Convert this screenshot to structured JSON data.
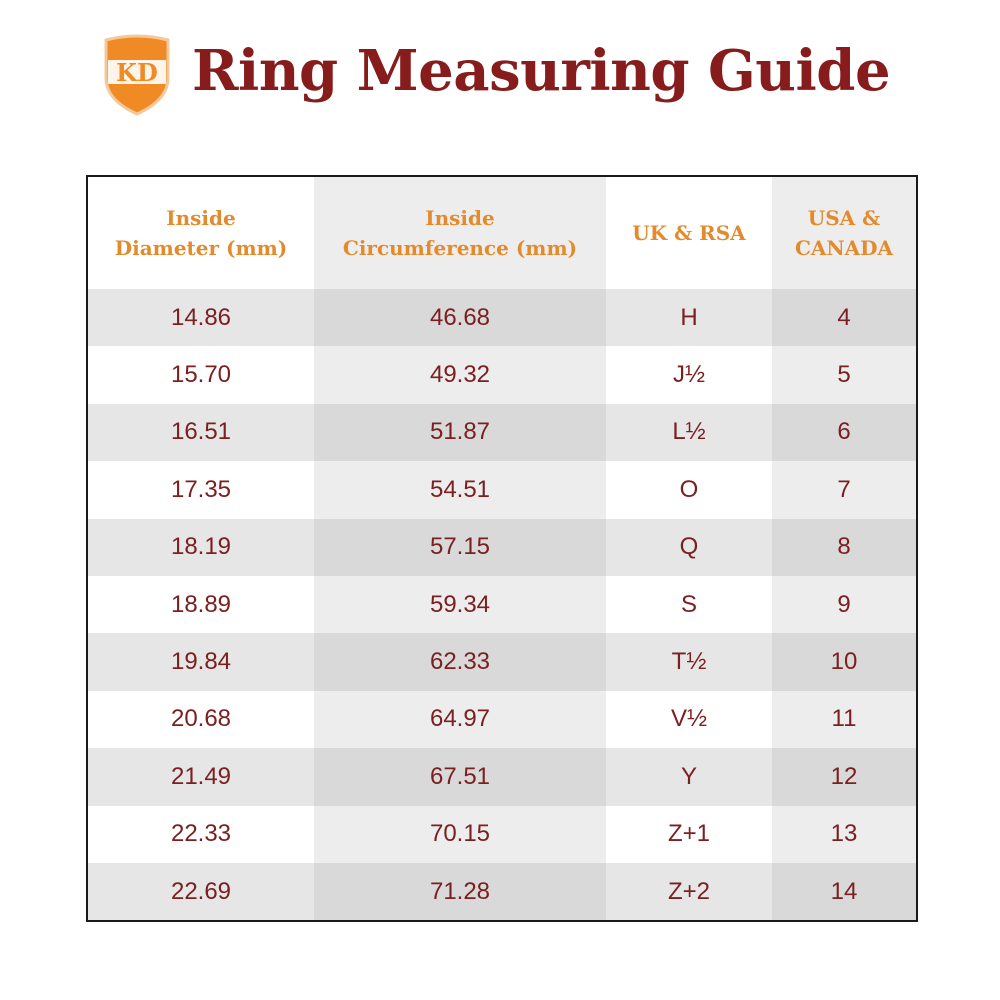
{
  "header": {
    "logo_text": "KD",
    "title": "Ring Measuring Guide"
  },
  "colors": {
    "title": "#861c1c",
    "column_header": "#e38b2c",
    "cell_text": "#7a2020",
    "logo_orange": "#f08a24"
  },
  "table": {
    "columns": [
      [
        "Inside",
        "Diameter (mm)"
      ],
      [
        "Inside",
        "Circumference (mm)"
      ],
      [
        "UK & RSA"
      ],
      [
        "USA &",
        "CANADA"
      ]
    ],
    "rows": [
      [
        "14.86",
        "46.68",
        "H",
        "4"
      ],
      [
        "15.70",
        "49.32",
        "J½",
        "5"
      ],
      [
        "16.51",
        "51.87",
        "L½",
        "6"
      ],
      [
        "17.35",
        "54.51",
        "O",
        "7"
      ],
      [
        "18.19",
        "57.15",
        "Q",
        "8"
      ],
      [
        "18.89",
        "59.34",
        "S",
        "9"
      ],
      [
        "19.84",
        "62.33",
        "T½",
        "10"
      ],
      [
        "20.68",
        "64.97",
        "V½",
        "11"
      ],
      [
        "21.49",
        "67.51",
        "Y",
        "12"
      ],
      [
        "22.33",
        "70.15",
        "Z+1",
        "13"
      ],
      [
        "22.69",
        "71.28",
        "Z+2",
        "14"
      ]
    ]
  }
}
